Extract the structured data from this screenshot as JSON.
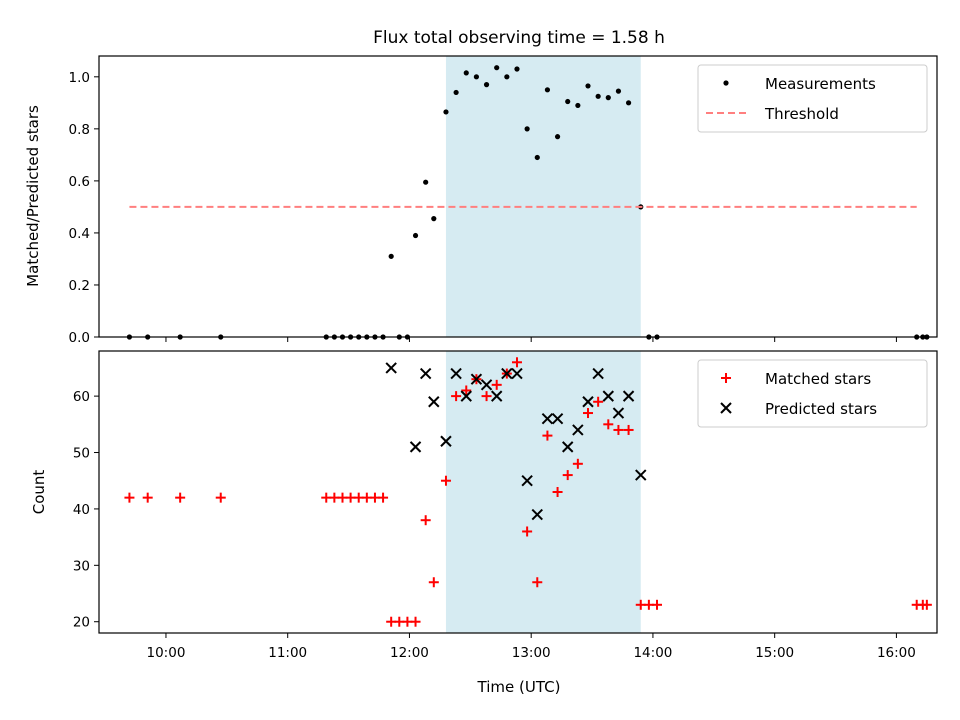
{
  "chart_data": [
    {
      "type": "scatter",
      "title": "Flux total observing time = 1.58 h",
      "ylabel": "Matched/Predicted stars",
      "xlabel": "",
      "xlim": [
        "09:27",
        "16:20"
      ],
      "ylim": [
        0,
        1.08
      ],
      "yticks": [
        "0.0",
        "0.2",
        "0.4",
        "0.6",
        "0.8",
        "1.0"
      ],
      "shaded_interval": [
        "12:18",
        "13:54"
      ],
      "legend_position": "upper right",
      "series": [
        {
          "name": "Measurements",
          "marker": "dot",
          "color": "#000000",
          "points": [
            [
              "09:42",
              0.0
            ],
            [
              "09:51",
              0.0
            ],
            [
              "10:07",
              0.0
            ],
            [
              "10:27",
              0.0
            ],
            [
              "11:19",
              0.0
            ],
            [
              "11:23",
              0.0
            ],
            [
              "11:27",
              0.0
            ],
            [
              "11:31",
              0.0
            ],
            [
              "11:35",
              0.0
            ],
            [
              "11:39",
              0.0
            ],
            [
              "11:43",
              0.0
            ],
            [
              "11:47",
              0.0
            ],
            [
              "11:51",
              0.31
            ],
            [
              "11:55",
              0.0
            ],
            [
              "11:59",
              0.0
            ],
            [
              "12:03",
              0.39
            ],
            [
              "12:08",
              0.595
            ],
            [
              "12:12",
              0.455
            ],
            [
              "12:18",
              0.865
            ],
            [
              "12:23",
              0.94
            ],
            [
              "12:28",
              1.015
            ],
            [
              "12:33",
              1.0
            ],
            [
              "12:38",
              0.97
            ],
            [
              "12:43",
              1.035
            ],
            [
              "12:48",
              1.0
            ],
            [
              "12:53",
              1.03
            ],
            [
              "12:58",
              0.8
            ],
            [
              "13:03",
              0.69
            ],
            [
              "13:08",
              0.95
            ],
            [
              "13:13",
              0.77
            ],
            [
              "13:18",
              0.905
            ],
            [
              "13:23",
              0.89
            ],
            [
              "13:28",
              0.965
            ],
            [
              "13:33",
              0.925
            ],
            [
              "13:38",
              0.92
            ],
            [
              "13:43",
              0.945
            ],
            [
              "13:48",
              0.9
            ],
            [
              "13:54",
              0.5
            ],
            [
              "13:58",
              0.0
            ],
            [
              "14:02",
              0.0
            ],
            [
              "16:10",
              0.0
            ],
            [
              "16:13",
              0.0
            ],
            [
              "16:15",
              0.0
            ]
          ]
        },
        {
          "name": "Threshold",
          "marker": "dashed-line",
          "color": "#ff7f7f",
          "points": [
            [
              "09:42",
              0.5
            ],
            [
              "16:10",
              0.5
            ]
          ]
        }
      ]
    },
    {
      "type": "scatter",
      "title": "",
      "ylabel": "Count",
      "xlabel": "Time (UTC)",
      "xlim": [
        "09:27",
        "16:20"
      ],
      "ylim": [
        18,
        68
      ],
      "yticks": [
        "20",
        "30",
        "40",
        "50",
        "60"
      ],
      "xticks": [
        "10:00",
        "11:00",
        "12:00",
        "13:00",
        "14:00",
        "15:00",
        "16:00"
      ],
      "shaded_interval": [
        "12:18",
        "13:54"
      ],
      "legend_position": "upper right",
      "series": [
        {
          "name": "Matched stars",
          "marker": "plus",
          "color": "#ff0000",
          "points": [
            [
              "09:42",
              42
            ],
            [
              "09:51",
              42
            ],
            [
              "10:07",
              42
            ],
            [
              "10:27",
              42
            ],
            [
              "11:19",
              42
            ],
            [
              "11:23",
              42
            ],
            [
              "11:27",
              42
            ],
            [
              "11:31",
              42
            ],
            [
              "11:35",
              42
            ],
            [
              "11:39",
              42
            ],
            [
              "11:43",
              42
            ],
            [
              "11:47",
              42
            ],
            [
              "11:51",
              20
            ],
            [
              "11:55",
              20
            ],
            [
              "11:59",
              20
            ],
            [
              "12:03",
              20
            ],
            [
              "12:08",
              38
            ],
            [
              "12:12",
              27
            ],
            [
              "12:18",
              45
            ],
            [
              "12:23",
              60
            ],
            [
              "12:28",
              61
            ],
            [
              "12:33",
              63
            ],
            [
              "12:38",
              60
            ],
            [
              "12:43",
              62
            ],
            [
              "12:48",
              64
            ],
            [
              "12:53",
              66
            ],
            [
              "12:58",
              36
            ],
            [
              "13:03",
              27
            ],
            [
              "13:08",
              53
            ],
            [
              "13:13",
              43
            ],
            [
              "13:18",
              46
            ],
            [
              "13:23",
              48
            ],
            [
              "13:28",
              57
            ],
            [
              "13:33",
              59
            ],
            [
              "13:38",
              55
            ],
            [
              "13:43",
              54
            ],
            [
              "13:48",
              54
            ],
            [
              "13:54",
              23
            ],
            [
              "13:58",
              23
            ],
            [
              "14:02",
              23
            ],
            [
              "16:10",
              23
            ],
            [
              "16:13",
              23
            ],
            [
              "16:15",
              23
            ]
          ]
        },
        {
          "name": "Predicted stars",
          "marker": "x",
          "color": "#000000",
          "points": [
            [
              "11:51",
              65
            ],
            [
              "12:03",
              51
            ],
            [
              "12:08",
              64
            ],
            [
              "12:12",
              59
            ],
            [
              "12:18",
              52
            ],
            [
              "12:23",
              64
            ],
            [
              "12:28",
              60
            ],
            [
              "12:33",
              63
            ],
            [
              "12:38",
              62
            ],
            [
              "12:43",
              60
            ],
            [
              "12:48",
              64
            ],
            [
              "12:53",
              64
            ],
            [
              "12:58",
              45
            ],
            [
              "13:03",
              39
            ],
            [
              "13:08",
              56
            ],
            [
              "13:13",
              56
            ],
            [
              "13:18",
              51
            ],
            [
              "13:23",
              54
            ],
            [
              "13:28",
              59
            ],
            [
              "13:33",
              64
            ],
            [
              "13:38",
              60
            ],
            [
              "13:43",
              57
            ],
            [
              "13:48",
              60
            ],
            [
              "13:54",
              46
            ]
          ]
        }
      ]
    }
  ]
}
